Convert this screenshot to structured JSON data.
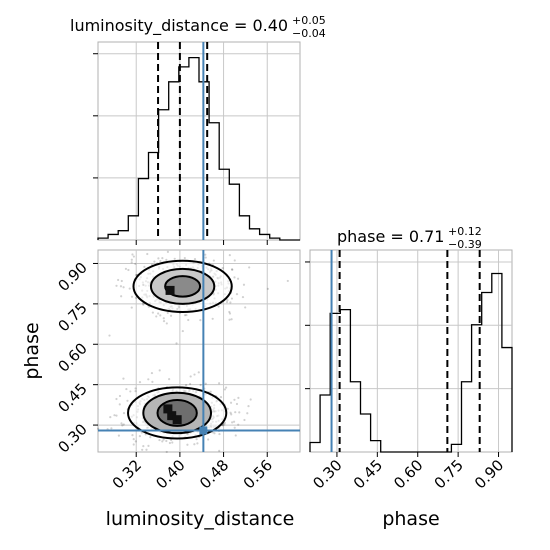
{
  "chart_data": [
    {
      "type": "histogram",
      "panel": "marginal",
      "parameter": "luminosity_distance",
      "title": {
        "label": "luminosity_distance",
        "median": "0.40",
        "plus": "+0.05",
        "minus": "−0.04"
      },
      "xlim": [
        0.25,
        0.62
      ],
      "bin_width": 0.0185,
      "bins_left_edge": 0.25,
      "counts": [
        0.01,
        0.03,
        0.05,
        0.13,
        0.33,
        0.47,
        0.7,
        0.85,
        0.93,
        0.98,
        0.85,
        0.63,
        0.38,
        0.3,
        0.13,
        0.06,
        0.03,
        0.01,
        0.0,
        0.0
      ],
      "quantiles": [
        0.36,
        0.4,
        0.45
      ],
      "truth": 0.443,
      "show_ticklabels": false,
      "grid": true
    },
    {
      "type": "histogram",
      "panel": "marginal",
      "parameter": "phase",
      "title": {
        "label": "phase",
        "median": "0.71",
        "plus": "+0.12",
        "minus": "−0.39"
      },
      "xlim": [
        0.2,
        0.95
      ],
      "bin_width": 0.0375,
      "bins_left_edge": 0.2,
      "counts": [
        0.05,
        0.3,
        0.73,
        0.75,
        0.37,
        0.2,
        0.06,
        0.0,
        0.0,
        0.0,
        0.0,
        0.0,
        0.0,
        0.0,
        0.04,
        0.37,
        0.67,
        0.84,
        0.94,
        0.55
      ],
      "quantiles": [
        0.31,
        0.71,
        0.83
      ],
      "truth": 0.28,
      "xticks": [
        "0.30",
        "0.45",
        "0.60",
        "0.75",
        "0.90"
      ],
      "xlabel": "phase",
      "grid": true
    },
    {
      "type": "scatter+contour",
      "panel": "joint",
      "x_param": "luminosity_distance",
      "y_param": "phase",
      "xlim": [
        0.25,
        0.62
      ],
      "ylim": [
        0.2,
        0.95
      ],
      "xticks": [
        "0.32",
        "0.40",
        "0.48",
        "0.56"
      ],
      "yticks": [
        "0.30",
        "0.45",
        "0.60",
        "0.75",
        "0.90"
      ],
      "xlabel": "luminosity_distance",
      "ylabel": "phase",
      "modes": [
        {
          "center": [
            0.405,
            0.815
          ],
          "levels": [
            {
              "rx": 0.09,
              "ry": 0.095,
              "fill": "#ffffff"
            },
            {
              "rx": 0.058,
              "ry": 0.065,
              "fill": "#c8c8c8"
            },
            {
              "rx": 0.032,
              "ry": 0.038,
              "fill": "#8a8a8a"
            }
          ]
        },
        {
          "center": [
            0.395,
            0.345
          ],
          "levels": [
            {
              "rx": 0.09,
              "ry": 0.095,
              "fill": "#ffffff"
            },
            {
              "rx": 0.062,
              "ry": 0.075,
              "fill": "#b5b5b5"
            },
            {
              "rx": 0.036,
              "ry": 0.048,
              "fill": "#6e6e6e"
            }
          ]
        }
      ],
      "dense_points": [
        [
          0.382,
          0.8
        ],
        [
          0.385,
          0.335
        ],
        [
          0.378,
          0.36
        ],
        [
          0.395,
          0.32
        ]
      ],
      "truth": [
        0.443,
        0.28
      ],
      "grid": true
    }
  ],
  "colors": {
    "truth": "#4682b4",
    "grid": "#c8c8c8",
    "frame": "#b0b0b0",
    "hist": "#000000"
  }
}
